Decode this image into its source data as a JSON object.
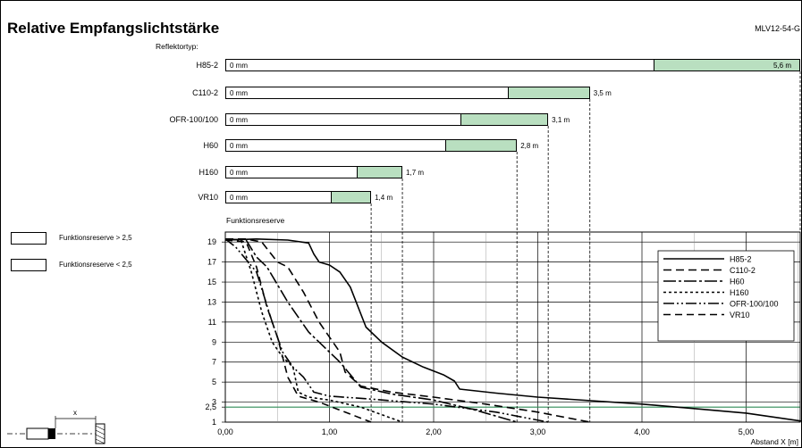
{
  "header": {
    "title": "Relative Empfangslichtstärke",
    "code": "MLV12-54-G",
    "reflector_label": "Reflektortyp:"
  },
  "bars": [
    {
      "name": "H85-2",
      "start_label": "0 mm",
      "range_m": 5.6,
      "range_label": "5,6 m",
      "reserve_limit_m": 4.1
    },
    {
      "name": "C110-2",
      "start_label": "0 mm",
      "range_m": 3.5,
      "range_label": "3,5 m",
      "reserve_limit_m": 2.7
    },
    {
      "name": "OFR-100/100",
      "start_label": "0 mm",
      "range_m": 3.1,
      "range_label": "3,1 m",
      "reserve_limit_m": 2.25
    },
    {
      "name": "H60",
      "start_label": "0 mm",
      "range_m": 2.8,
      "range_label": "2,8 m",
      "reserve_limit_m": 2.1
    },
    {
      "name": "H160",
      "start_label": "0 mm",
      "range_m": 1.7,
      "range_label": "1,7 m",
      "reserve_limit_m": 1.25
    },
    {
      "name": "VR10",
      "start_label": "0 mm",
      "range_m": 1.4,
      "range_label": "1,4 m",
      "reserve_limit_m": 1.0
    }
  ],
  "legend_boxes": [
    {
      "label": "Funktionsreserve > 2,5",
      "color": "#ffffff"
    },
    {
      "label": "Funktionsreserve < 2,5",
      "color": "#b9dfc0"
    }
  ],
  "plot": {
    "y_title": "Funktionsreserve",
    "x_title": "Abstand X [m]",
    "x_ticks": [
      "0,00",
      "1,00",
      "2,00",
      "3,00",
      "4,00",
      "5,00"
    ],
    "y_ticks": [
      "19",
      "17",
      "15",
      "13",
      "11",
      "9",
      "7",
      "5",
      "3",
      "2,5",
      "1"
    ],
    "threshold_color": "#2e8b57"
  },
  "diagram_label": "x",
  "chart_data": {
    "type": "line",
    "title": "Relative Empfangslichtstärke",
    "xlabel": "Abstand X [m]",
    "ylabel": "Funktionsreserve",
    "xlim": [
      0,
      5.6
    ],
    "ylim": [
      1,
      20
    ],
    "threshold": 2.5,
    "series": [
      {
        "name": "H85-2",
        "dash": "",
        "x": [
          0,
          0.3,
          0.6,
          0.8,
          0.85,
          0.9,
          1.0,
          1.1,
          1.2,
          1.35,
          1.5,
          1.7,
          1.9,
          2.1,
          2.2,
          2.25,
          2.6,
          3.0,
          4.0,
          5.0,
          5.6
        ],
        "y": [
          19.2,
          19.3,
          19.2,
          18.9,
          17.8,
          17.0,
          16.7,
          16.0,
          14.5,
          10.5,
          9.0,
          7.5,
          6.5,
          5.7,
          5.1,
          4.3,
          3.9,
          3.5,
          2.8,
          1.9,
          1.0
        ]
      },
      {
        "name": "C110-2",
        "dash": "9,5",
        "x": [
          0,
          0.2,
          0.35,
          0.5,
          0.6,
          0.75,
          0.9,
          1.0,
          1.1,
          1.15,
          1.3,
          1.6,
          2.0,
          2.5,
          3.0,
          3.5
        ],
        "y": [
          19.3,
          19.3,
          19.0,
          17.0,
          16.5,
          14.0,
          11.0,
          9.5,
          8.0,
          6.0,
          4.6,
          4.0,
          3.5,
          2.8,
          2.0,
          1.0
        ]
      },
      {
        "name": "H60",
        "dash": "14,3,3,3",
        "x": [
          0,
          0.2,
          0.3,
          0.4,
          0.6,
          0.8,
          1.0,
          1.1,
          1.3,
          1.6,
          2.0,
          2.4,
          2.8
        ],
        "y": [
          19.3,
          19.2,
          17.5,
          16.5,
          13.0,
          10.0,
          8.0,
          7.0,
          4.5,
          3.8,
          3.2,
          2.2,
          1.0
        ]
      },
      {
        "name": "H160",
        "dash": "3,3",
        "x": [
          0,
          0.15,
          0.25,
          0.35,
          0.45,
          0.55,
          0.65,
          0.7,
          0.8,
          1.0,
          1.3,
          1.7
        ],
        "y": [
          19.3,
          19.2,
          16.0,
          12.0,
          9.0,
          7.5,
          6.5,
          4.0,
          3.5,
          3.2,
          2.5,
          1.0
        ]
      },
      {
        "name": "OFR-100/100",
        "dash": "12,3,2,3,2,3",
        "x": [
          0,
          0.1,
          0.3,
          0.45,
          0.55,
          0.65,
          0.75,
          0.85,
          1.0,
          1.4,
          2.0,
          2.6,
          3.1
        ],
        "y": [
          19.3,
          18.5,
          16.0,
          11.0,
          8.0,
          6.5,
          5.5,
          4.0,
          3.6,
          3.3,
          2.8,
          2.0,
          1.0
        ]
      },
      {
        "name": "VR10",
        "dash": "8,5",
        "x": [
          0,
          0.2,
          0.3,
          0.4,
          0.5,
          0.55,
          0.6,
          0.7,
          0.9,
          1.1,
          1.4
        ],
        "y": [
          19.2,
          19.0,
          16.5,
          12.5,
          9.5,
          7.5,
          5.5,
          3.6,
          3.0,
          2.2,
          1.0
        ]
      }
    ],
    "legend": "top-right",
    "grid": true
  }
}
